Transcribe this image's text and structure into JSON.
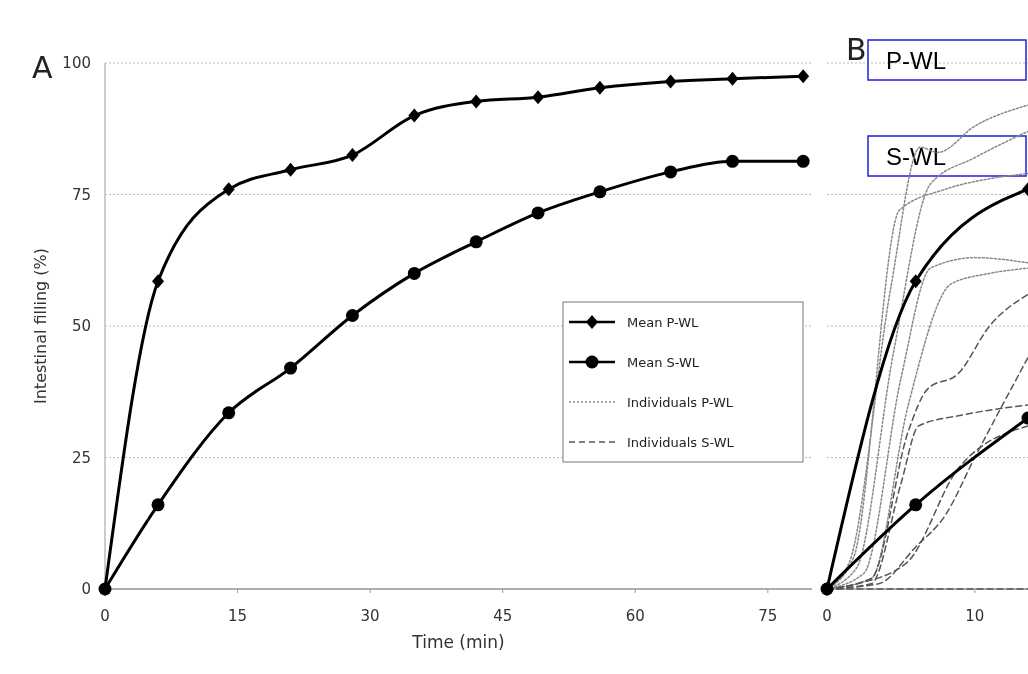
{
  "chart_data": [
    {
      "type": "line",
      "title": "A",
      "xlabel": "Time (min)",
      "ylabel": "Intestinal filling (%)",
      "xlim": [
        0,
        80
      ],
      "ylim": [
        0,
        100
      ],
      "xticks": [
        0,
        15,
        30,
        45,
        60,
        75
      ],
      "yticks": [
        0,
        25,
        50,
        75,
        100
      ],
      "grid": "y",
      "legend": "right",
      "series": [
        {
          "name": "Mean P-WL",
          "color": "#000000",
          "marker": "diamond",
          "line_style": "solid",
          "x": [
            0,
            6,
            14,
            21,
            28,
            35,
            42,
            49,
            56,
            64,
            71,
            79
          ],
          "values": [
            0,
            58.5,
            76,
            79.7,
            82.5,
            90,
            92.7,
            93.5,
            95.3,
            96.5,
            97,
            97.5
          ]
        },
        {
          "name": "Mean S-WL",
          "color": "#000000",
          "marker": "circle",
          "line_style": "solid",
          "x": [
            0,
            6,
            14,
            21,
            28,
            35,
            42,
            49,
            56,
            64,
            71,
            79
          ],
          "values": [
            0,
            16,
            33.5,
            42,
            52,
            60,
            66,
            71.5,
            75.5,
            79.3,
            81.3,
            81.3
          ]
        }
      ]
    },
    {
      "type": "line",
      "title": "B",
      "xlim": [
        0,
        13.6
      ],
      "ylim": [
        0,
        100
      ],
      "xticks": [
        0,
        10
      ],
      "yticks": [
        0,
        25,
        50,
        75,
        100
      ],
      "grid": "y",
      "tick_labels": "x",
      "annotations": [
        "P-WL",
        "S-WL"
      ],
      "series": [
        {
          "name": "Individuals P-WL",
          "color": "#888888",
          "marker": "none",
          "line_style": "dotted",
          "x": [
            0,
            1.5,
            4.3,
            6.3,
            7.5,
            10,
            13.6
          ],
          "values": [
            0,
            5,
            57,
            84,
            83,
            88,
            92
          ]
        },
        {
          "color": "#888888",
          "marker": "none",
          "line_style": "dotted",
          "x": [
            0,
            2,
            4.5,
            7,
            10,
            13.6
          ],
          "values": [
            0,
            4,
            45,
            77,
            82,
            87
          ]
        },
        {
          "color": "#888888",
          "marker": "none",
          "line_style": "dotted",
          "x": [
            0,
            1.8,
            4.9,
            8,
            11,
            13.6
          ],
          "values": [
            0,
            6,
            72,
            76,
            78,
            79
          ]
        },
        {
          "color": "#888888",
          "marker": "none",
          "line_style": "dotted",
          "x": [
            0,
            2.5,
            5,
            7,
            10,
            13.6
          ],
          "values": [
            0,
            3,
            40,
            61,
            63,
            62
          ]
        },
        {
          "color": "#888888",
          "marker": "none",
          "line_style": "dotted",
          "x": [
            0,
            3,
            5.5,
            8.4,
            11,
            13.6
          ],
          "values": [
            0,
            2,
            35,
            58,
            60,
            61
          ]
        },
        {
          "name": "Individuals S-WL",
          "color": "#555555",
          "marker": "none",
          "line_style": "dashed",
          "x": [
            0,
            3,
            5.5,
            6.8,
            8.9,
            11,
            13.6
          ],
          "values": [
            0,
            2,
            30,
            38,
            41,
            50,
            56
          ]
        },
        {
          "color": "#555555",
          "marker": "none",
          "line_style": "dashed",
          "x": [
            0,
            3,
            5,
            6.2,
            9,
            11,
            13.6
          ],
          "values": [
            0,
            1,
            20,
            31,
            33,
            34,
            35
          ]
        },
        {
          "color": "#555555",
          "marker": "none",
          "line_style": "dashed",
          "x": [
            0,
            3.5,
            6,
            8,
            10,
            13.6
          ],
          "values": [
            0,
            1,
            8,
            14,
            25,
            44
          ]
        },
        {
          "color": "#555555",
          "marker": "none",
          "line_style": "dashed",
          "x": [
            0,
            2,
            5.4,
            8.9,
            13.6
          ],
          "values": [
            0,
            1,
            5,
            23,
            31
          ]
        },
        {
          "color": "#555555",
          "marker": "none",
          "line_style": "dashed",
          "x": [
            0,
            13.6
          ],
          "values": [
            0,
            0
          ]
        },
        {
          "color": "#000000",
          "marker": "diamond",
          "line_style": "solid",
          "x": [
            0,
            6,
            13.6
          ],
          "values": [
            0,
            58.5,
            76
          ]
        },
        {
          "color": "#000000",
          "marker": "circle",
          "line_style": "solid",
          "x": [
            0,
            6,
            13.6
          ],
          "values": [
            0,
            16,
            32.5
          ]
        }
      ]
    }
  ]
}
